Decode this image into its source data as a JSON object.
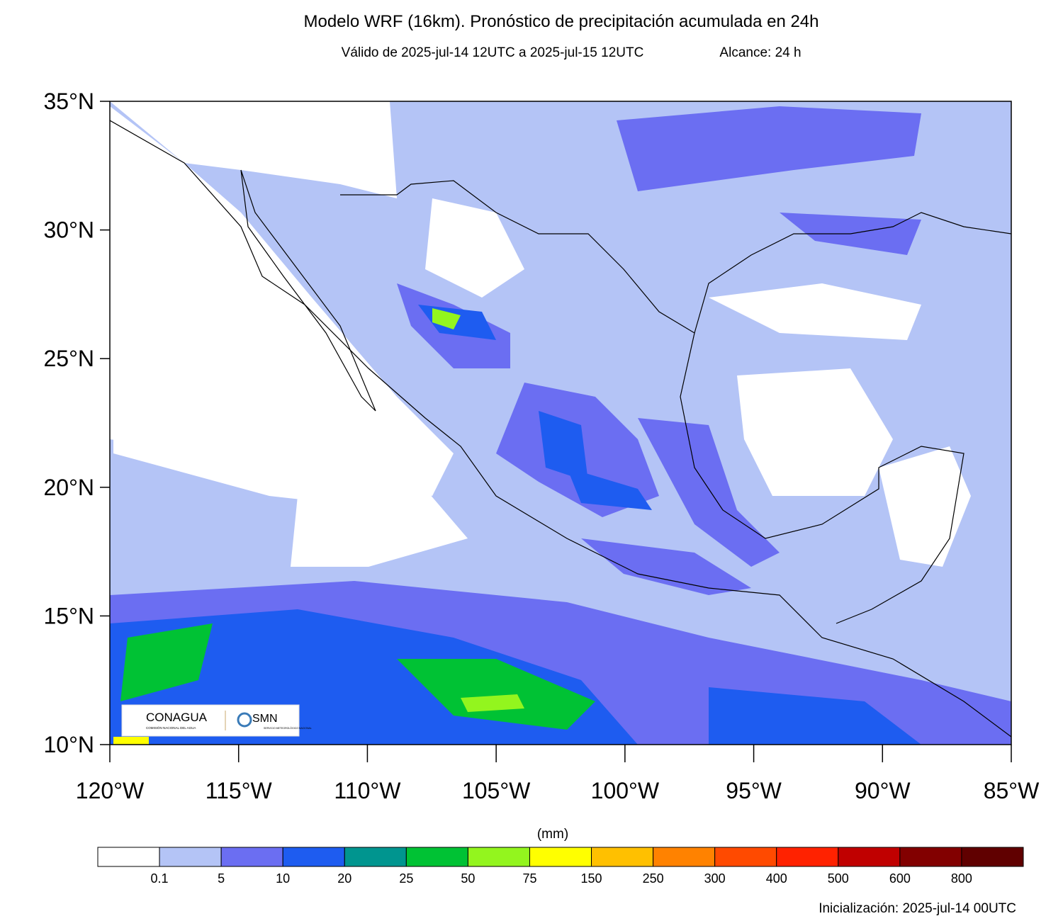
{
  "header": {
    "title": "Modelo WRF (16km). Pronóstico de precipitación acumulada en 24h",
    "subtitle": "Válido de 2025-jul-14 12UTC a 2025-jul-15 12UTC",
    "range": "Alcance: 24 h"
  },
  "map": {
    "xlim": [
      -120,
      -85
    ],
    "ylim": [
      10,
      35
    ],
    "lat_ticks": [
      {
        "value": 35,
        "label": "35°N"
      },
      {
        "value": 30,
        "label": "30°N"
      },
      {
        "value": 25,
        "label": "25°N"
      },
      {
        "value": 20,
        "label": "20°N"
      },
      {
        "value": 15,
        "label": "15°N"
      },
      {
        "value": 10,
        "label": "10°N"
      }
    ],
    "lon_ticks": [
      {
        "value": -120,
        "label": "120°W"
      },
      {
        "value": -115,
        "label": "115°W"
      },
      {
        "value": -110,
        "label": "110°W"
      },
      {
        "value": -105,
        "label": "105°W"
      },
      {
        "value": -100,
        "label": "100°W"
      },
      {
        "value": -95,
        "label": "95°W"
      },
      {
        "value": -90,
        "label": "90°W"
      },
      {
        "value": -85,
        "label": "85°W"
      }
    ]
  },
  "logos": {
    "conagua": "CONAGUA",
    "conagua_sub": "COMISIÓN NACIONAL DEL AGUA",
    "smn": "SMN",
    "smn_sub": "SERVICIO METEOROLÓGICO NACIONAL"
  },
  "colorbar": {
    "unit": "(mm)",
    "colors": [
      "#ffffff",
      "#b4c4f6",
      "#6b6ef2",
      "#1e5cf0",
      "#00958f",
      "#00c234",
      "#93f51e",
      "#ffff00",
      "#ffc000",
      "#ff8200",
      "#ff4a00",
      "#ff2200",
      "#c00000",
      "#820000",
      "#600000"
    ],
    "labels": [
      "0.1",
      "5",
      "10",
      "20",
      "25",
      "50",
      "75",
      "150",
      "250",
      "300",
      "400",
      "500",
      "600",
      "800"
    ]
  },
  "footer": "Inicialización: 2025-jul-14 00UTC"
}
